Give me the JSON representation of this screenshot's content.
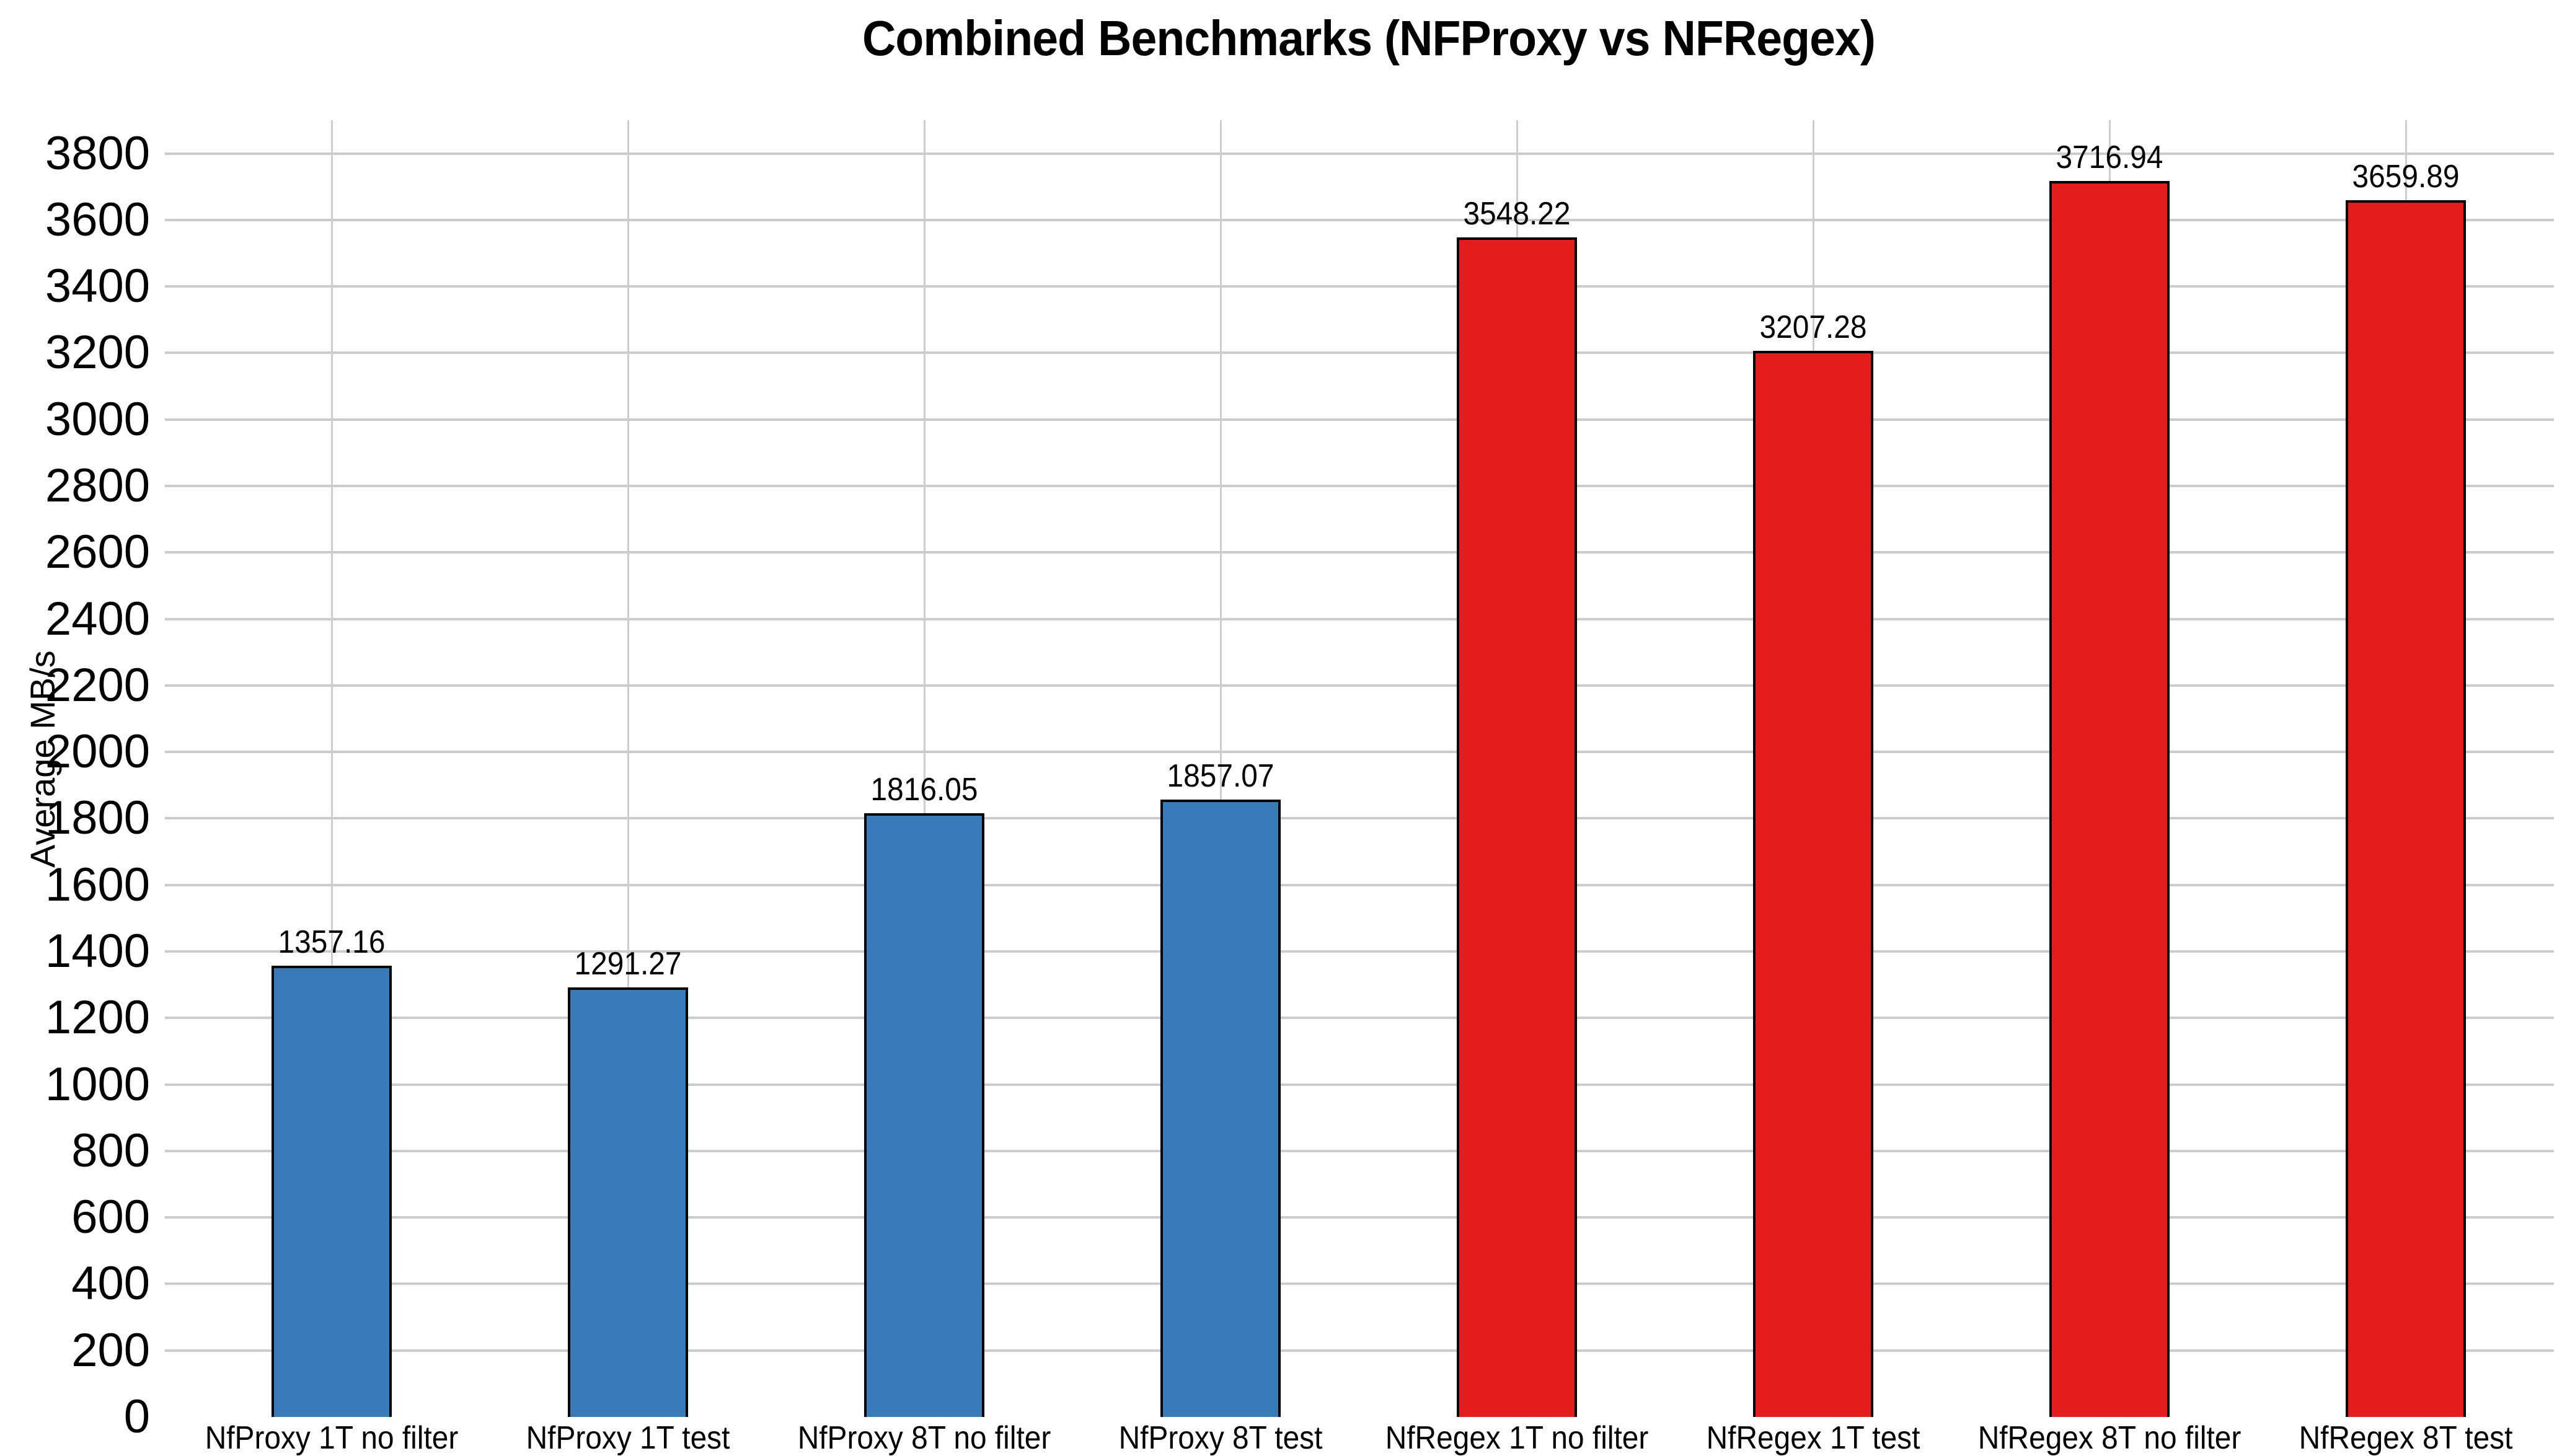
{
  "title": "Combined Benchmarks (NFProxy vs NFRegex)",
  "colors": {
    "proxy_blue": "#387bb8",
    "regex_red": "#e51c1c",
    "bar_border": "#000000",
    "gridline": "#cccccc",
    "text": "#000000",
    "background": "#ffffff"
  },
  "chart_data": {
    "type": "bar",
    "title": "Combined Benchmarks (NFProxy vs NFRegex)",
    "xlabel": "",
    "ylabel": "Average MB/s",
    "ylim": [
      0,
      3900
    ],
    "ytick_step": 200,
    "yticks": [
      0,
      200,
      400,
      600,
      800,
      1000,
      1200,
      1400,
      1600,
      1800,
      2000,
      2200,
      2400,
      2600,
      2800,
      3000,
      3200,
      3400,
      3600,
      3800
    ],
    "grid": true,
    "legend": "none",
    "categories": [
      "NfProxy 1T no filter",
      "NfProxy 1T test",
      "NfProxy 8T no filter",
      "NfProxy 8T test",
      "NfRegex 1T no filter",
      "NfRegex 1T test",
      "NfRegex 8T no filter",
      "NfRegex 8T test"
    ],
    "values": [
      1357.16,
      1291.27,
      1816.05,
      1857.07,
      3548.22,
      3207.28,
      3716.94,
      3659.89
    ],
    "value_labels": [
      "1357.16",
      "1291.27",
      "1816.05",
      "1857.07",
      "3548.22",
      "3207.28",
      "3716.94",
      "3659.89"
    ],
    "bar_colors": [
      "#387bb8",
      "#387bb8",
      "#387bb8",
      "#387bb8",
      "#e51c1c",
      "#e51c1c",
      "#e51c1c",
      "#e51c1c"
    ]
  }
}
